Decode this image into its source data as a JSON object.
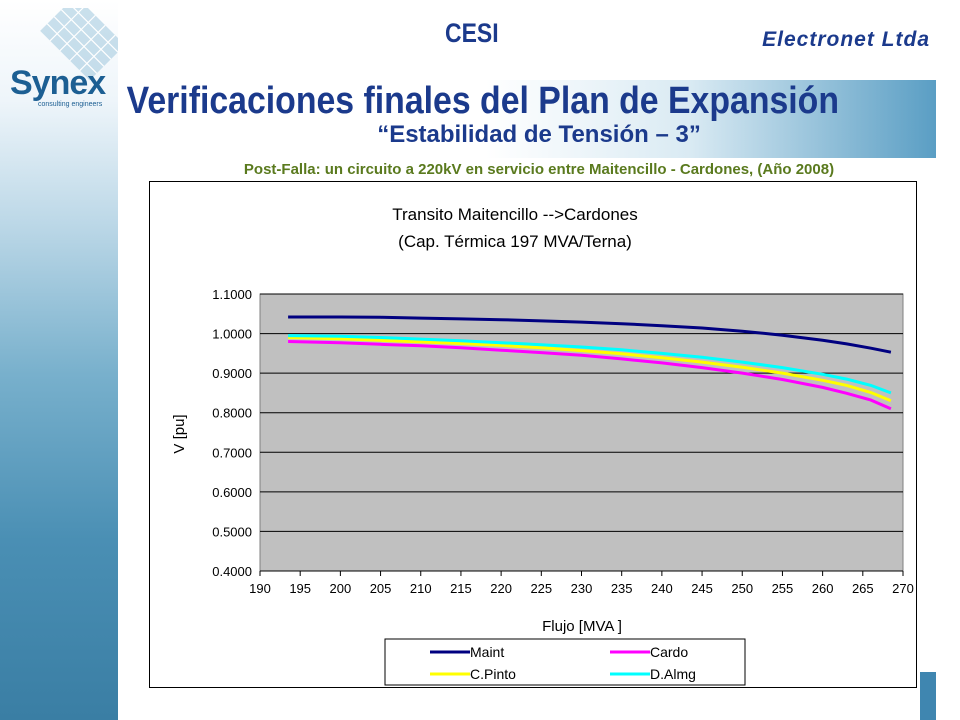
{
  "header": {
    "cesi": "CESI",
    "electronet": "Electronet Ltda",
    "title": "Verificaciones finales del Plan de Expansión",
    "subtitle": "“Estabilidad de Tensión – 3”",
    "postfalla": "Post-Falla: un circuito a 220kV en servicio entre Maitencillo - Cardones, (Año 2008)"
  },
  "logo": {
    "word": "Synex",
    "tagline": "consulting engineers"
  },
  "colors": {
    "brand_blue": "#1b3a8c",
    "caption_green": "#5a7a1e",
    "plot_bg": "#c0c0c0"
  },
  "chart_data": {
    "type": "line",
    "title": "Transito Maitencillo -->Cardones",
    "subtitle": "(Cap. Térmica 197 MVA/Terna)",
    "xlabel": "Flujo [MVA ]",
    "ylabel": "V [pu]",
    "xlim": [
      190,
      270
    ],
    "ylim": [
      0.4,
      1.1
    ],
    "xticks": [
      "190",
      "195",
      "200",
      "205",
      "210",
      "215",
      "220",
      "225",
      "230",
      "235",
      "240",
      "245",
      "250",
      "255",
      "260",
      "265",
      "270"
    ],
    "yticks": [
      "0.4000",
      "0.5000",
      "0.6000",
      "0.7000",
      "0.8000",
      "0.9000",
      "1.0000",
      "1.1000"
    ],
    "grid": true,
    "legend_position": "bottom",
    "x": [
      193.5,
      200,
      205,
      210,
      215,
      220,
      225,
      230,
      235,
      240,
      245,
      250,
      255,
      260,
      263,
      266,
      268.5
    ],
    "series": [
      {
        "name": "Maint",
        "color": "#000080",
        "values": [
          1.042,
          1.042,
          1.041,
          1.039,
          1.037,
          1.035,
          1.032,
          1.029,
          1.025,
          1.02,
          1.014,
          1.006,
          0.996,
          0.983,
          0.974,
          0.963,
          0.953
        ]
      },
      {
        "name": "Cardo",
        "color": "#ff00ff",
        "values": [
          0.98,
          0.977,
          0.973,
          0.969,
          0.964,
          0.958,
          0.952,
          0.945,
          0.936,
          0.926,
          0.914,
          0.9,
          0.884,
          0.864,
          0.849,
          0.832,
          0.81
        ]
      },
      {
        "name": "C.Pinto",
        "color": "#ffff00",
        "values": [
          0.99,
          0.987,
          0.983,
          0.979,
          0.975,
          0.97,
          0.964,
          0.957,
          0.949,
          0.939,
          0.928,
          0.915,
          0.9,
          0.882,
          0.869,
          0.851,
          0.83
        ]
      },
      {
        "name": "D.Almg",
        "color": "#00ffff",
        "values": [
          0.995,
          0.993,
          0.99,
          0.986,
          0.982,
          0.977,
          0.972,
          0.966,
          0.959,
          0.95,
          0.94,
          0.928,
          0.914,
          0.897,
          0.885,
          0.869,
          0.85
        ]
      }
    ]
  }
}
